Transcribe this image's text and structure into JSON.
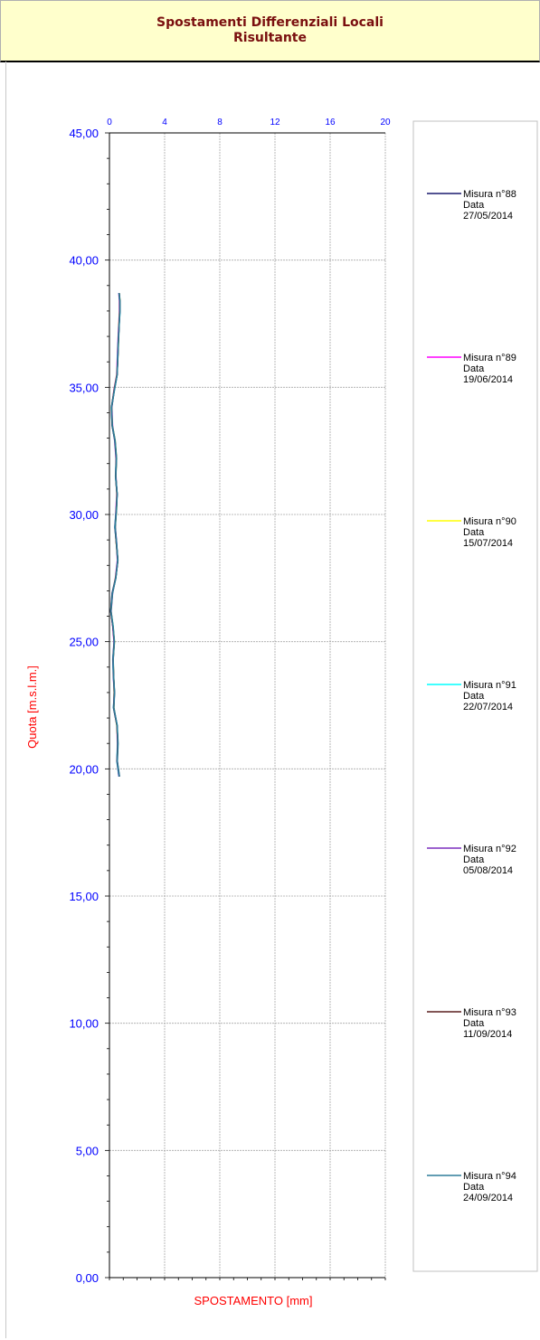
{
  "colors": {
    "title_bg": "#ffffcc",
    "title_text": "#7a0f0f",
    "tick_text": "#0000ff",
    "axis_label": "#ff0000"
  },
  "chart_data": {
    "type": "line",
    "title": "Spostamenti Differenziali Locali",
    "subtitle": "Risultante",
    "xlabel": "SPOSTAMENTO [mm]",
    "ylabel": "Quota [m.s.l.m.]",
    "xlim": [
      0,
      20
    ],
    "ylim": [
      0,
      45
    ],
    "x_ticks": [
      "0",
      "4",
      "8",
      "12",
      "16",
      "20"
    ],
    "y_ticks": [
      "0,00",
      "5,00",
      "10,00",
      "15,00",
      "20,00",
      "25,00",
      "30,00",
      "35,00",
      "40,00",
      "45,00"
    ],
    "x_axis_position": "top",
    "grid": true,
    "legend_position": "right",
    "series": [
      {
        "name": "Misura n°88",
        "date_label": "Data",
        "date": "27/05/2014",
        "color": "#1a1a6e",
        "x": [
          0.7,
          0.55,
          0.6,
          0.55,
          0.3,
          0.35,
          0.3,
          0.25,
          0.35,
          0.25,
          0.1,
          0.2,
          0.45,
          0.6,
          0.5,
          0.4,
          0.5,
          0.55,
          0.45,
          0.5,
          0.4,
          0.2,
          0.15,
          0.35,
          0.55,
          0.6,
          0.65,
          0.7,
          0.75,
          0.75,
          0.7
        ],
        "y": [
          19.7,
          20.3,
          21.0,
          21.7,
          22.4,
          23.0,
          23.6,
          24.3,
          25.0,
          25.6,
          26.2,
          26.9,
          27.5,
          28.2,
          28.9,
          29.5,
          30.2,
          30.8,
          31.5,
          32.2,
          32.9,
          33.5,
          34.2,
          34.9,
          35.5,
          36.2,
          36.9,
          37.5,
          38.0,
          38.4,
          38.7
        ]
      },
      {
        "name": "Misura n°89",
        "date_label": "Data",
        "date": "19/06/2014",
        "color": "#ff00ff",
        "x": [
          0.68,
          0.57,
          0.58,
          0.56,
          0.31,
          0.36,
          0.28,
          0.27,
          0.33,
          0.24,
          0.12,
          0.22,
          0.43,
          0.58,
          0.52,
          0.42,
          0.48,
          0.53,
          0.47,
          0.48,
          0.38,
          0.22,
          0.17,
          0.33,
          0.53,
          0.58,
          0.63,
          0.68,
          0.73,
          0.73,
          0.68
        ],
        "y": [
          19.7,
          20.3,
          21.0,
          21.7,
          22.4,
          23.0,
          23.6,
          24.3,
          25.0,
          25.6,
          26.2,
          26.9,
          27.5,
          28.2,
          28.9,
          29.5,
          30.2,
          30.8,
          31.5,
          32.2,
          32.9,
          33.5,
          34.2,
          34.9,
          35.5,
          36.2,
          36.9,
          37.5,
          38.0,
          38.4,
          38.7
        ]
      },
      {
        "name": "Misura n°90",
        "date_label": "Data",
        "date": "15/07/2014",
        "color": "#ffff00",
        "x": [
          0.71,
          0.56,
          0.61,
          0.54,
          0.32,
          0.34,
          0.31,
          0.26,
          0.36,
          0.26,
          0.11,
          0.21,
          0.44,
          0.61,
          0.49,
          0.41,
          0.51,
          0.54,
          0.46,
          0.51,
          0.41,
          0.21,
          0.16,
          0.34,
          0.54,
          0.61,
          0.66,
          0.69,
          0.74,
          0.76,
          0.71
        ],
        "y": [
          19.7,
          20.3,
          21.0,
          21.7,
          22.4,
          23.0,
          23.6,
          24.3,
          25.0,
          25.6,
          26.2,
          26.9,
          27.5,
          28.2,
          28.9,
          29.5,
          30.2,
          30.8,
          31.5,
          32.2,
          32.9,
          33.5,
          34.2,
          34.9,
          35.5,
          36.2,
          36.9,
          37.5,
          38.0,
          38.4,
          38.7
        ]
      },
      {
        "name": "Misura n°91",
        "date_label": "Data",
        "date": "22/07/2014",
        "color": "#00ffff",
        "x": [
          0.69,
          0.54,
          0.59,
          0.57,
          0.29,
          0.37,
          0.29,
          0.24,
          0.34,
          0.27,
          0.09,
          0.19,
          0.46,
          0.59,
          0.51,
          0.39,
          0.49,
          0.56,
          0.44,
          0.49,
          0.39,
          0.19,
          0.14,
          0.36,
          0.56,
          0.59,
          0.64,
          0.71,
          0.76,
          0.74,
          0.69
        ],
        "y": [
          19.7,
          20.3,
          21.0,
          21.7,
          22.4,
          23.0,
          23.6,
          24.3,
          25.0,
          25.6,
          26.2,
          26.9,
          27.5,
          28.2,
          28.9,
          29.5,
          30.2,
          30.8,
          31.5,
          32.2,
          32.9,
          33.5,
          34.2,
          34.9,
          35.5,
          36.2,
          36.9,
          37.5,
          38.0,
          38.4,
          38.7
        ]
      },
      {
        "name": "Misura n°92",
        "date_label": "Data",
        "date": "05/08/2014",
        "color": "#7b2fbe",
        "x": [
          0.7,
          0.55,
          0.6,
          0.55,
          0.3,
          0.35,
          0.3,
          0.25,
          0.35,
          0.25,
          0.1,
          0.2,
          0.45,
          0.6,
          0.5,
          0.4,
          0.5,
          0.55,
          0.45,
          0.5,
          0.4,
          0.2,
          0.15,
          0.35,
          0.55,
          0.6,
          0.65,
          0.7,
          0.75,
          0.75,
          0.7
        ],
        "y": [
          19.7,
          20.3,
          21.0,
          21.7,
          22.4,
          23.0,
          23.6,
          24.3,
          25.0,
          25.6,
          26.2,
          26.9,
          27.5,
          28.2,
          28.9,
          29.5,
          30.2,
          30.8,
          31.5,
          32.2,
          32.9,
          33.5,
          34.2,
          34.9,
          35.5,
          36.2,
          36.9,
          37.5,
          38.0,
          38.4,
          38.7
        ]
      },
      {
        "name": "Misura n°93",
        "date_label": "Data",
        "date": "11/09/2014",
        "color": "#5a1e1e",
        "x": [
          0.72,
          0.56,
          0.6,
          0.55,
          0.31,
          0.36,
          0.3,
          0.26,
          0.35,
          0.25,
          0.1,
          0.21,
          0.45,
          0.6,
          0.5,
          0.41,
          0.5,
          0.55,
          0.45,
          0.5,
          0.4,
          0.2,
          0.15,
          0.35,
          0.55,
          0.6,
          0.65,
          0.7,
          0.75,
          0.75,
          0.7
        ],
        "y": [
          19.7,
          20.3,
          21.0,
          21.7,
          22.4,
          23.0,
          23.6,
          24.3,
          25.0,
          25.6,
          26.2,
          26.9,
          27.5,
          28.2,
          28.9,
          29.5,
          30.2,
          30.8,
          31.5,
          32.2,
          32.9,
          33.5,
          34.2,
          34.9,
          35.5,
          36.2,
          36.9,
          37.5,
          38.0,
          38.4,
          38.7
        ]
      },
      {
        "name": "Misura n°94",
        "date_label": "Data",
        "date": "24/09/2014",
        "color": "#2e7d9a",
        "x": [
          0.73,
          0.57,
          0.62,
          0.56,
          0.32,
          0.37,
          0.31,
          0.27,
          0.36,
          0.26,
          0.11,
          0.22,
          0.46,
          0.61,
          0.51,
          0.42,
          0.51,
          0.56,
          0.46,
          0.51,
          0.41,
          0.21,
          0.16,
          0.36,
          0.56,
          0.61,
          0.66,
          0.71,
          0.76,
          0.76,
          0.71
        ],
        "y": [
          19.7,
          20.3,
          21.0,
          21.7,
          22.4,
          23.0,
          23.6,
          24.3,
          25.0,
          25.6,
          26.2,
          26.9,
          27.5,
          28.2,
          28.9,
          29.5,
          30.2,
          30.8,
          31.5,
          32.2,
          32.9,
          33.5,
          34.2,
          34.9,
          35.5,
          36.2,
          36.9,
          37.5,
          38.0,
          38.4,
          38.7
        ]
      }
    ]
  }
}
